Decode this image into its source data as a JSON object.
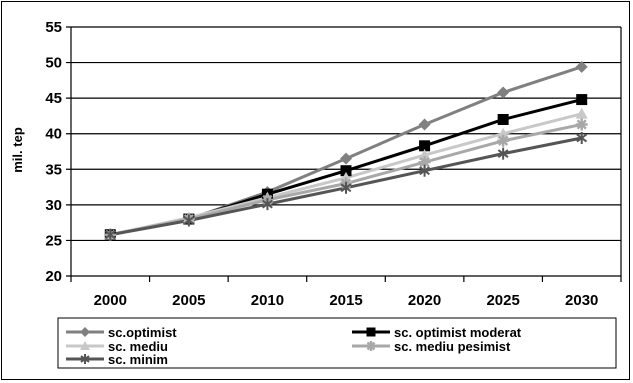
{
  "chart_data": {
    "type": "line",
    "categories": [
      "2000",
      "2005",
      "2010",
      "2015",
      "2020",
      "2025",
      "2030"
    ],
    "ylabel": "mil. tep",
    "ylim": [
      20,
      55
    ],
    "yticks": [
      20,
      25,
      30,
      35,
      40,
      45,
      50,
      55
    ],
    "grid": true,
    "legend_position": "bottom",
    "series": [
      {
        "name": "sc.optimist",
        "values": [
          25.8,
          28.0,
          31.8,
          36.5,
          41.3,
          45.8,
          49.4
        ],
        "color": "#808080",
        "marker": "diamond"
      },
      {
        "name": "sc. optimist moderat",
        "values": [
          25.8,
          28.0,
          31.5,
          34.8,
          38.3,
          42.0,
          44.8
        ],
        "color": "#000000",
        "marker": "square"
      },
      {
        "name": "sc. mediu",
        "values": [
          25.8,
          28.2,
          31.0,
          33.8,
          37.0,
          40.0,
          42.8
        ],
        "color": "#c8c8c8",
        "marker": "triangle"
      },
      {
        "name": "sc. mediu pesimist",
        "values": [
          25.8,
          28.0,
          30.7,
          33.0,
          36.0,
          39.0,
          41.3
        ],
        "color": "#a8a8a8",
        "marker": "star"
      },
      {
        "name": "sc. minim",
        "values": [
          25.8,
          27.8,
          30.1,
          32.4,
          34.8,
          37.2,
          39.4
        ],
        "color": "#555555",
        "marker": "asterisk"
      }
    ]
  }
}
